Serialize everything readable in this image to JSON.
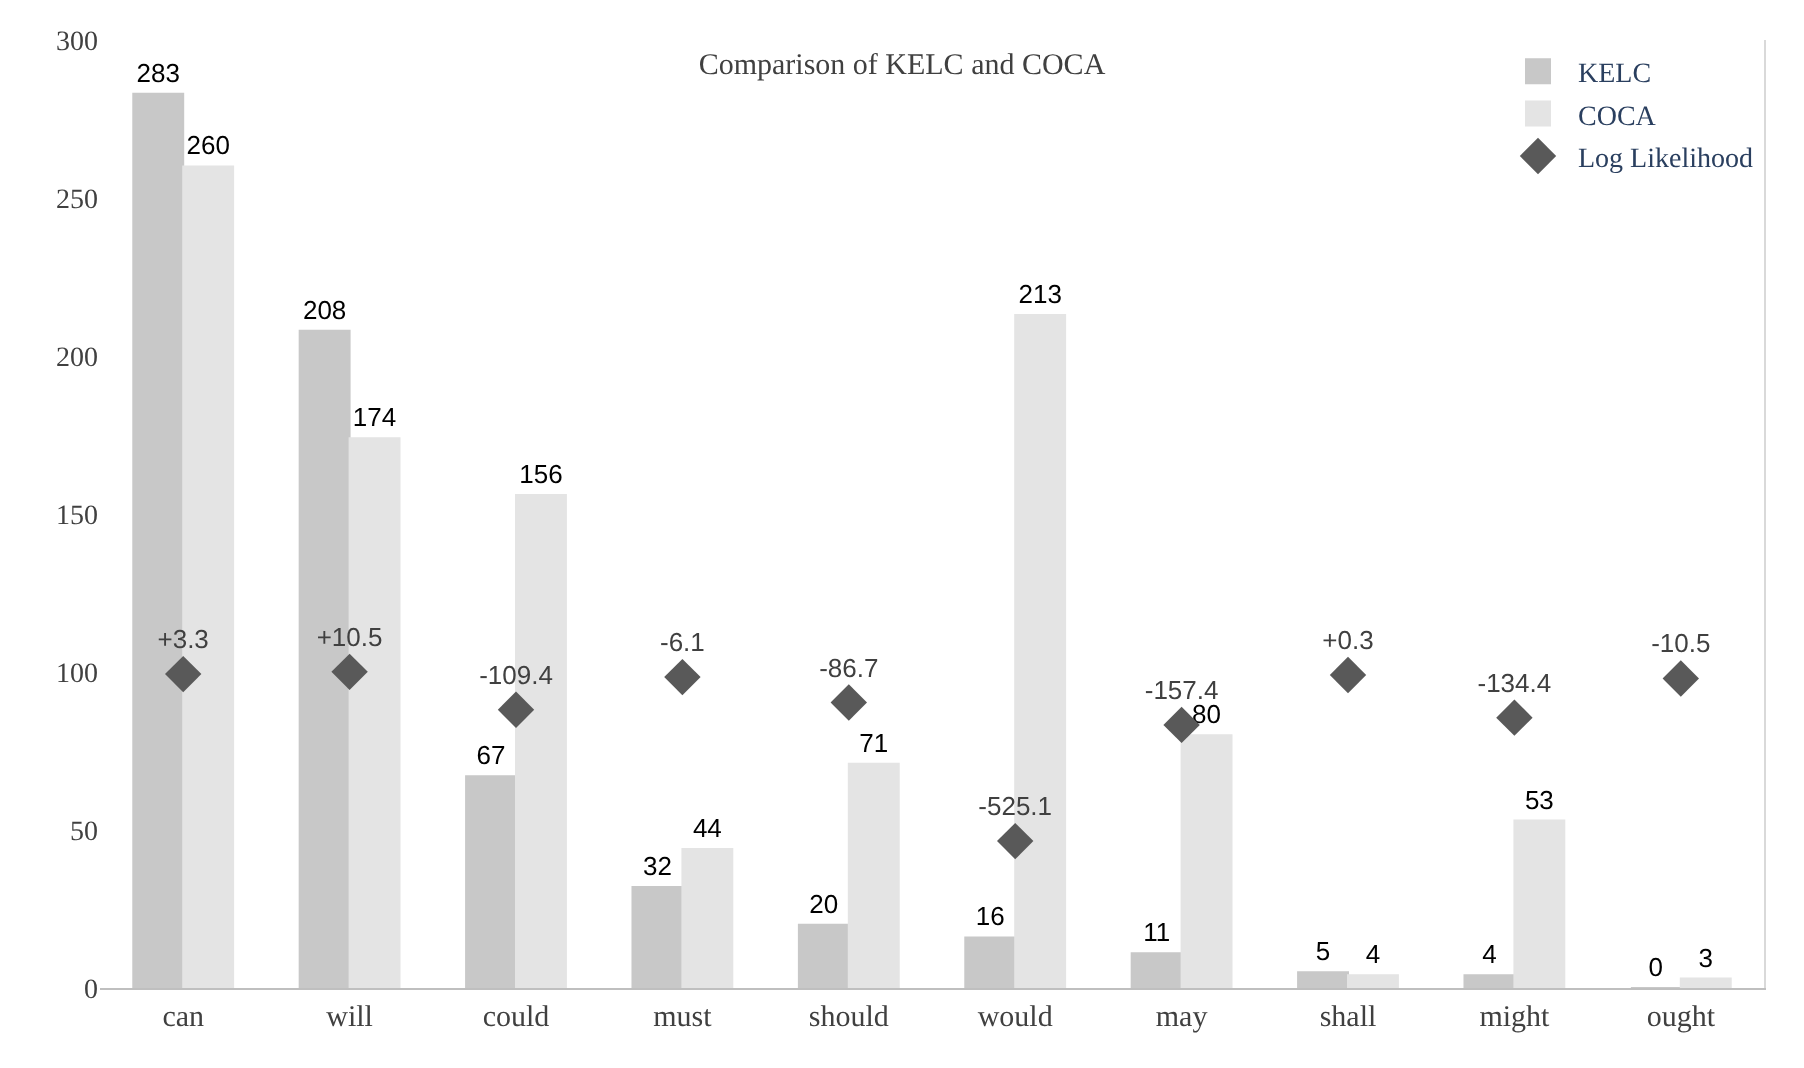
{
  "chart_data": {
    "type": "bar",
    "title": "Comparison of KELC and COCA",
    "categories": [
      "can",
      "will",
      "could",
      "must",
      "should",
      "would",
      "may",
      "shall",
      "might",
      "ought"
    ],
    "series": [
      {
        "name": "KELC",
        "color": "#c8c8c8",
        "values": [
          283,
          208,
          67,
          32,
          20,
          16,
          11,
          5,
          4,
          0
        ]
      },
      {
        "name": "COCA",
        "color": "#e4e4e4",
        "values": [
          260,
          174,
          156,
          44,
          71,
          213,
          80,
          4,
          53,
          3
        ]
      },
      {
        "name": "Log Likelihood",
        "type": "scatter",
        "axis": "y2",
        "marker": "diamond",
        "color": "#595959",
        "values": [
          3.3,
          10.5,
          -109.4,
          -6.1,
          -86.7,
          -525.1,
          -157.4,
          0.3,
          -134.4,
          -10.5
        ],
        "value_labels": [
          "+3.3",
          "+10.5",
          "-109.4",
          "-6.1",
          "-86.7",
          "-525.1",
          "-157.4",
          "+0.3",
          "-134.4",
          "-10.5"
        ]
      }
    ],
    "data_labels": true,
    "y2lim": [
      -990,
      2010
    ],
    "ylim": [
      0,
      300
    ],
    "yticks": [
      0,
      50,
      100,
      150,
      200,
      250,
      300
    ],
    "legend": "top right"
  }
}
